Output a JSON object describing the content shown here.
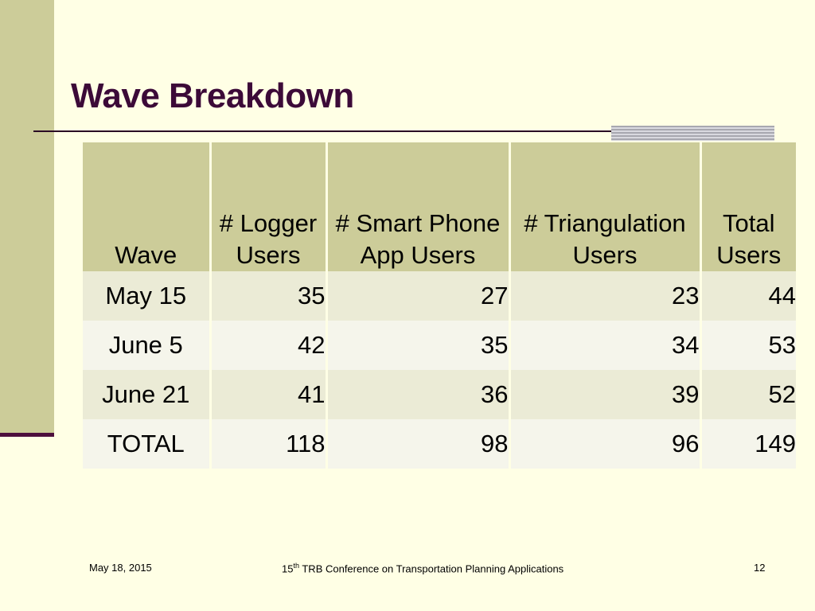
{
  "slide": {
    "title": "Wave Breakdown",
    "colors": {
      "accent": "#cccc99",
      "title": "#3c0a38",
      "background": "#ffffe5"
    }
  },
  "table": {
    "headers": [
      {
        "line1": "",
        "line2": "Wave"
      },
      {
        "line1": "# Logger",
        "line2": "Users"
      },
      {
        "line1": "# Smart Phone",
        "line2": "App Users"
      },
      {
        "line1": "# Triangulation",
        "line2": "Users"
      },
      {
        "line1": "Total",
        "line2": "Users"
      }
    ],
    "rows": [
      [
        "May 15",
        "35",
        "27",
        "23",
        "44"
      ],
      [
        "June 5",
        "42",
        "35",
        "34",
        "53"
      ],
      [
        "June 21",
        "41",
        "36",
        "39",
        "52"
      ]
    ],
    "total_row": [
      "TOTAL",
      "118",
      "98",
      "96",
      "149"
    ]
  },
  "footer": {
    "date": "May 18, 2015",
    "conference_num": "15",
    "conference_sup": "th",
    "conference_text": " TRB Conference on Transportation Planning Applications",
    "page": "12"
  }
}
